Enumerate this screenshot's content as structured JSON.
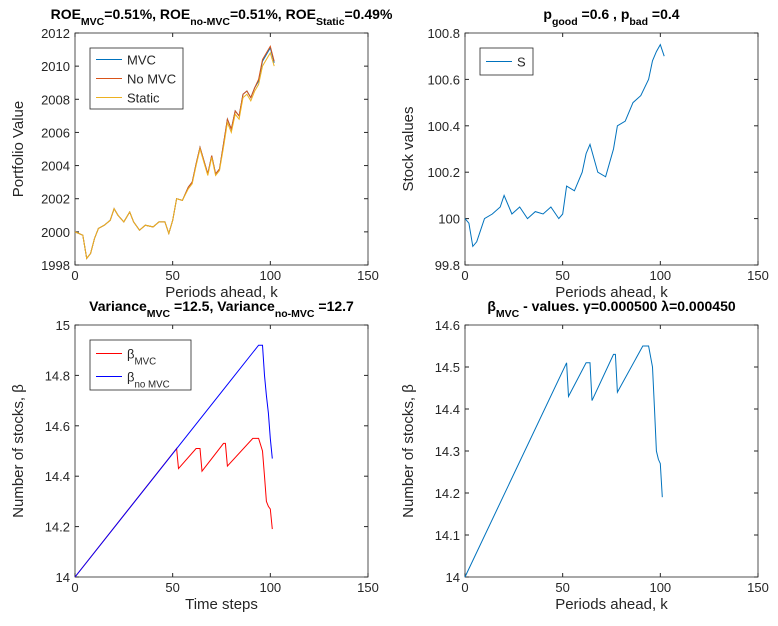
{
  "chart_data": [
    {
      "type": "line",
      "title": [
        "ROE",
        "MVC",
        "=0.51%, ROE",
        "no-MVC",
        "=0.51%, ROE",
        "Static",
        "=0.49%"
      ],
      "xlabel": "Periods ahead, k",
      "ylabel": "Portfolio Value",
      "xlim": [
        0,
        150
      ],
      "xticks": [
        0,
        50,
        100,
        150
      ],
      "ylim": [
        1998,
        2012
      ],
      "yticks": [
        1998,
        2000,
        2002,
        2004,
        2006,
        2008,
        2010,
        2012
      ],
      "legend": "upper left",
      "x": [
        0,
        2,
        4,
        6,
        8,
        10,
        12,
        15,
        18,
        20,
        22,
        25,
        28,
        30,
        33,
        36,
        40,
        43,
        46,
        48,
        50,
        52,
        55,
        58,
        60,
        62,
        64,
        66,
        68,
        70,
        72,
        74,
        76,
        78,
        80,
        82,
        84,
        86,
        88,
        90,
        92,
        94,
        96,
        98,
        100,
        102
      ],
      "series": [
        {
          "name": "MVC",
          "color": "#0072bd",
          "values": [
            2000,
            1999.9,
            1999.8,
            1998.4,
            1998.7,
            1999.6,
            2000.2,
            2000.4,
            2000.7,
            2001.4,
            2001,
            2000.6,
            2001.2,
            2000.6,
            2000.1,
            2000.4,
            2000.3,
            2000.6,
            2000.6,
            1999.9,
            2000.7,
            2002,
            2001.9,
            2002.7,
            2003,
            2004.1,
            2005.1,
            2004.3,
            2003.5,
            2004.6,
            2003.5,
            2003.8,
            2005.3,
            2006.8,
            2006.2,
            2007.3,
            2007,
            2008.3,
            2008.5,
            2008.1,
            2008.7,
            2009.1,
            2010.3,
            2010.7,
            2011.1,
            2010.2
          ]
        },
        {
          "name": "No MVC",
          "color": "#d95319",
          "values": [
            2000,
            1999.9,
            1999.8,
            1998.4,
            1998.7,
            1999.6,
            2000.2,
            2000.4,
            2000.7,
            2001.4,
            2001,
            2000.6,
            2001.2,
            2000.6,
            2000.1,
            2000.4,
            2000.3,
            2000.6,
            2000.6,
            1999.9,
            2000.7,
            2002,
            2001.9,
            2002.7,
            2003,
            2004.1,
            2005.1,
            2004.3,
            2003.5,
            2004.6,
            2003.5,
            2003.8,
            2005.3,
            2006.8,
            2006.2,
            2007.3,
            2007,
            2008.3,
            2008.5,
            2008.1,
            2008.7,
            2009.2,
            2010.4,
            2010.8,
            2011.2,
            2010.3
          ]
        },
        {
          "name": "Static",
          "color": "#edb120",
          "values": [
            2000,
            1999.9,
            1999.8,
            1998.4,
            1998.7,
            1999.6,
            2000.2,
            2000.4,
            2000.7,
            2001.4,
            2001,
            2000.6,
            2001.2,
            2000.6,
            2000.1,
            2000.4,
            2000.3,
            2000.6,
            2000.6,
            1999.9,
            2000.7,
            2002,
            2001.9,
            2002.6,
            2002.9,
            2004,
            2005,
            2004.2,
            2003.4,
            2004.5,
            2003.4,
            2003.7,
            2005.1,
            2006.6,
            2006,
            2007.1,
            2006.8,
            2008.1,
            2008.3,
            2007.9,
            2008.5,
            2008.9,
            2010,
            2010.4,
            2010.8,
            2010
          ]
        }
      ]
    },
    {
      "type": "line",
      "title": [
        "p",
        "good",
        " =0.6 , p",
        "bad",
        " =0.4"
      ],
      "xlabel": "Periods ahead, k",
      "ylabel": "Stock values",
      "xlim": [
        0,
        150
      ],
      "xticks": [
        0,
        50,
        100,
        150
      ],
      "ylim": [
        99.8,
        100.8
      ],
      "yticks": [
        99.8,
        100,
        100.2,
        100.4,
        100.6,
        100.8
      ],
      "legend": "upper left",
      "x": [
        0,
        2,
        4,
        6,
        8,
        10,
        14,
        18,
        20,
        24,
        28,
        32,
        36,
        40,
        44,
        48,
        50,
        52,
        56,
        60,
        62,
        64,
        68,
        72,
        76,
        78,
        82,
        86,
        90,
        94,
        96,
        98,
        100,
        102
      ],
      "series": [
        {
          "name": "S",
          "color": "#0072bd",
          "values": [
            100,
            99.98,
            99.88,
            99.9,
            99.95,
            100,
            100.02,
            100.05,
            100.1,
            100.02,
            100.05,
            100,
            100.03,
            100.02,
            100.05,
            100,
            100.02,
            100.14,
            100.12,
            100.2,
            100.28,
            100.32,
            100.2,
            100.18,
            100.3,
            100.4,
            100.42,
            100.5,
            100.53,
            100.6,
            100.68,
            100.72,
            100.75,
            100.7
          ]
        }
      ]
    },
    {
      "type": "line",
      "title": [
        "Variance",
        "MVC",
        " =12.5, Variance",
        "no-MVC",
        " =12.7"
      ],
      "xlabel": "Time steps",
      "ylabel": "Number of stocks, β",
      "xlim": [
        0,
        150
      ],
      "xticks": [
        0,
        50,
        100,
        150
      ],
      "ylim": [
        14,
        15
      ],
      "yticks": [
        14,
        14.2,
        14.4,
        14.6,
        14.8,
        15
      ],
      "legend": "upper left",
      "series": [
        {
          "name": [
            "β",
            "MVC"
          ],
          "color": "#ff0000",
          "x": [
            0,
            52,
            53,
            62,
            64,
            65,
            76,
            77,
            78,
            91,
            94,
            96,
            97,
            98,
            99,
            100,
            101
          ],
          "values": [
            14,
            14.51,
            14.43,
            14.51,
            14.51,
            14.42,
            14.53,
            14.53,
            14.44,
            14.55,
            14.55,
            14.5,
            14.4,
            14.3,
            14.28,
            14.27,
            14.19
          ]
        },
        {
          "name": [
            "β",
            "no MVC"
          ],
          "color": "#0000ff",
          "x": [
            0,
            94,
            96,
            97,
            98,
            99,
            100,
            101
          ],
          "values": [
            14,
            14.92,
            14.92,
            14.8,
            14.72,
            14.65,
            14.55,
            14.47
          ]
        }
      ]
    },
    {
      "type": "line",
      "title": [
        "β",
        "MVC",
        " - values. γ=0.000500 λ=0.000450"
      ],
      "xlabel": "Periods ahead, k",
      "ylabel": "Number of stocks, β",
      "xlim": [
        0,
        150
      ],
      "xticks": [
        0,
        50,
        100,
        150
      ],
      "ylim": [
        14,
        14.6
      ],
      "yticks": [
        14,
        14.1,
        14.2,
        14.3,
        14.4,
        14.5,
        14.6
      ],
      "x": [
        0,
        52,
        53,
        62,
        64,
        65,
        76,
        77,
        78,
        91,
        94,
        96,
        97,
        98,
        99,
        100,
        101
      ],
      "series": [
        {
          "color": "#0072bd",
          "values": [
            14,
            14.51,
            14.43,
            14.51,
            14.51,
            14.42,
            14.53,
            14.53,
            14.44,
            14.55,
            14.55,
            14.5,
            14.4,
            14.3,
            14.28,
            14.27,
            14.19
          ]
        }
      ]
    }
  ]
}
